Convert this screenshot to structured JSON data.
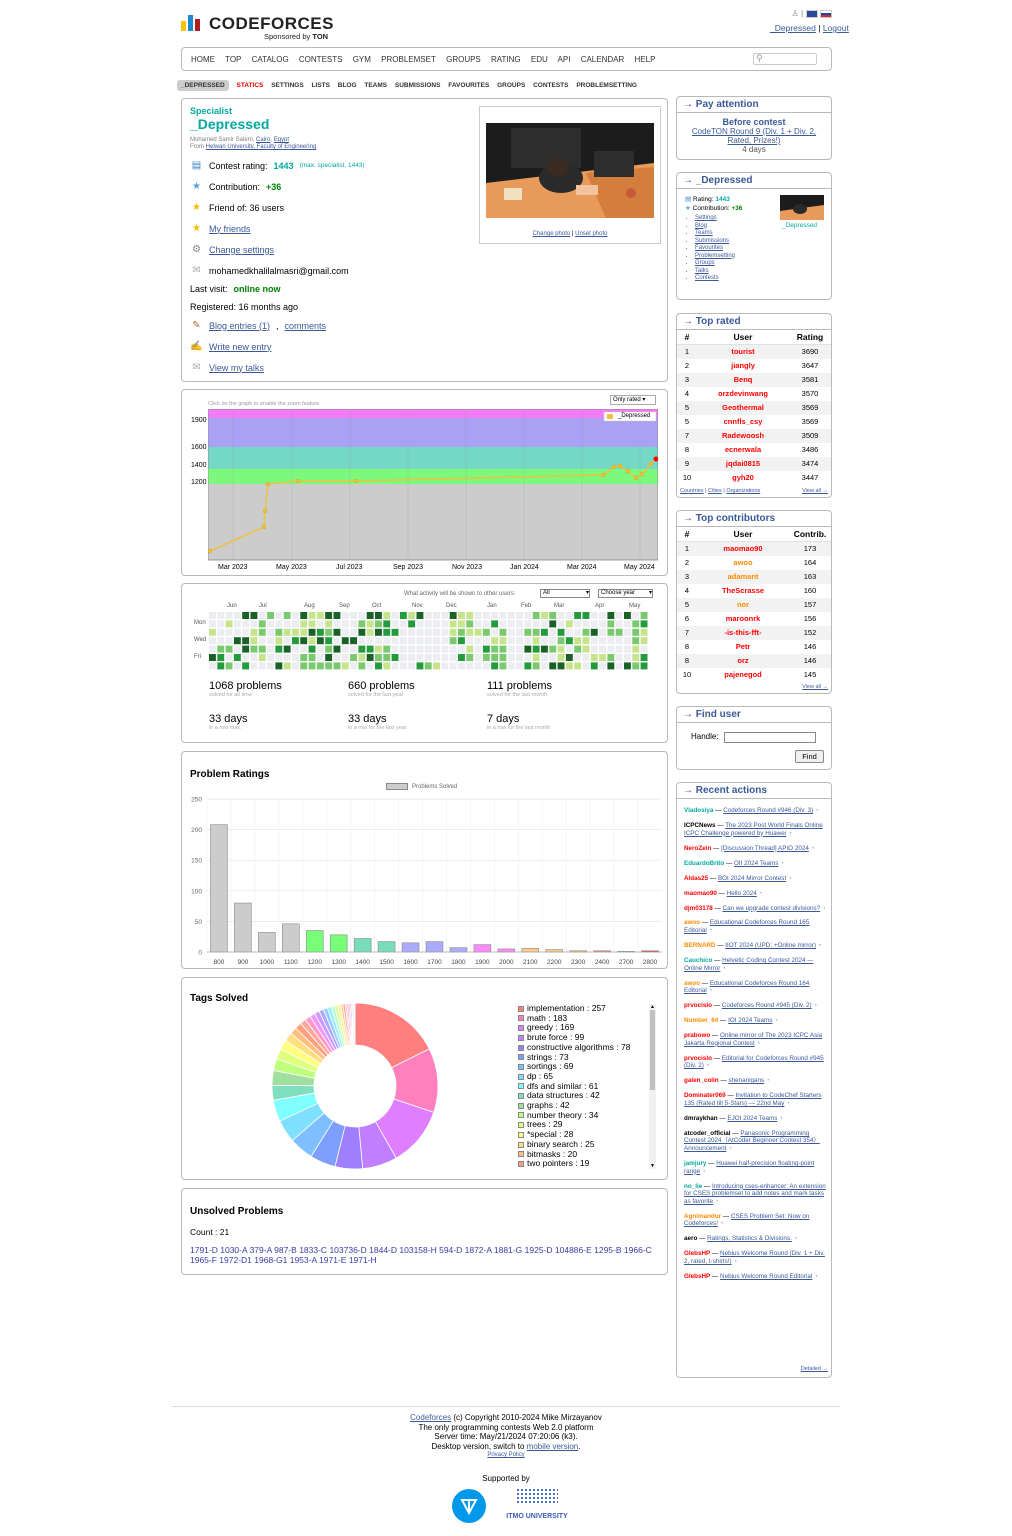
{
  "header": {
    "logo_text": "CODEFORCES",
    "sponsor_prefix": "Sponsored by",
    "sponsor": "TON",
    "user_link": "_Depressed",
    "logout": "Logout",
    "separator": "|"
  },
  "menu": [
    "HOME",
    "TOP",
    "CATALOG",
    "CONTESTS",
    "GYM",
    "PROBLEMSET",
    "GROUPS",
    "RATING",
    "EDU",
    "API",
    "CALENDAR",
    "HELP"
  ],
  "submenu": [
    "_DEPRESSED",
    "STATICS",
    "SETTINGS",
    "LISTS",
    "BLOG",
    "TEAMS",
    "SUBMISSIONS",
    "FAVOURITES",
    "GROUPS",
    "CONTESTS",
    "PROBLEMSETTING"
  ],
  "profile": {
    "rank": "Specialist",
    "handle": "_Depressed",
    "name_line": "Mohamed Samir Salem,",
    "city": "Cairo",
    "country": "Egypt",
    "from_prefix": "From",
    "org": "Helwan University, Faculty of Engineering",
    "rating_label": "Contest rating:",
    "rating": "1443",
    "rating_max": "(max. specialist, 1443)",
    "contribution_label": "Contribution:",
    "contribution": "+36",
    "friend_of": "Friend of: 36 users",
    "my_friends": "My friends",
    "change_settings": "Change settings",
    "email": "mohamedkhalilalmasri@gmail.com",
    "last_visit_label": "Last visit:",
    "last_visit": "online now",
    "registered": "Registered: 16 months ago",
    "blog_entries": "Blog entries (1)",
    "comments": "comments",
    "write_entry": "Write new entry",
    "view_talks": "View my talks",
    "change_photo": "Change photo",
    "unset_photo": "Unset photo"
  },
  "rating_graph": {
    "hint": "Click on the graph to enable the zoom feature.",
    "select": "Only rated",
    "legend": "_Depressed",
    "y_ticks": [
      "1900",
      "1600",
      "1400",
      "1200"
    ],
    "x_ticks": [
      "Mar 2023",
      "May 2023",
      "Jul 2023",
      "Sep 2023",
      "Nov 2023",
      "Jan 2024",
      "Mar 2024",
      "May 2024"
    ]
  },
  "activity": {
    "label": "What activity will be shown to other users:",
    "select_all": "All",
    "select_year": "Choose year",
    "months": [
      "Jun",
      "Jul",
      "Aug",
      "Sep",
      "Oct",
      "Nov",
      "Dec",
      "Jan",
      "Feb",
      "Mar",
      "Apr",
      "May"
    ],
    "days": [
      "Mon",
      "Wed",
      "Fri"
    ],
    "stats": [
      {
        "value": "1068 problems",
        "label": "solved for all time"
      },
      {
        "value": "660 problems",
        "label": "solved for the last year"
      },
      {
        "value": "111 problems",
        "label": "solved for the last month"
      },
      {
        "value": "33 days",
        "label": "in a row max."
      },
      {
        "value": "33 days",
        "label": "in a row for the last year"
      },
      {
        "value": "7 days",
        "label": "in a row for the last month"
      }
    ]
  },
  "chart_data": [
    {
      "type": "bar",
      "title": "Problem Ratings",
      "legend": "Problems Solved",
      "categories": [
        "800",
        "900",
        "1000",
        "1100",
        "1200",
        "1300",
        "1400",
        "1500",
        "1600",
        "1700",
        "1800",
        "1900",
        "2000",
        "2100",
        "2200",
        "2300",
        "2400",
        "2700",
        "2800"
      ],
      "values": [
        208,
        80,
        32,
        46,
        35,
        28,
        22,
        17,
        15,
        17,
        7,
        12,
        5,
        6,
        4,
        2,
        2,
        1,
        2
      ],
      "ylim": [
        0,
        250
      ],
      "y_ticks": [
        0,
        50,
        100,
        150,
        200,
        250
      ]
    },
    {
      "type": "pie",
      "title": "Tags Solved",
      "slices": [
        {
          "name": "implementation",
          "value": 257,
          "color": "#ff7f7f"
        },
        {
          "name": "math",
          "value": 183,
          "color": "#ff7fbf"
        },
        {
          "name": "greedy",
          "value": 169,
          "color": "#df7fff"
        },
        {
          "name": "brute force",
          "value": 99,
          "color": "#bf7fff"
        },
        {
          "name": "constructive algorithms",
          "value": 78,
          "color": "#9f7fff"
        },
        {
          "name": "strings",
          "value": 73,
          "color": "#7f9fff"
        },
        {
          "name": "sortings",
          "value": 69,
          "color": "#7fbfff"
        },
        {
          "name": "dp",
          "value": 65,
          "color": "#7fdfff"
        },
        {
          "name": "dfs and similar",
          "value": 61,
          "color": "#7fffff"
        },
        {
          "name": "data structures",
          "value": 42,
          "color": "#7fdfbf"
        },
        {
          "name": "graphs",
          "value": 42,
          "color": "#9fdf9f"
        },
        {
          "name": "number theory",
          "value": 34,
          "color": "#bfff7f"
        },
        {
          "name": "trees",
          "value": 29,
          "color": "#dfff7f"
        },
        {
          "name": "*special",
          "value": 28,
          "color": "#ffff7f"
        },
        {
          "name": "binary search",
          "value": 25,
          "color": "#ffdf7f"
        },
        {
          "name": "bitmasks",
          "value": 20,
          "color": "#ffbf7f"
        },
        {
          "name": "two pointers",
          "value": 19,
          "color": "#ff9f7f"
        }
      ]
    }
  ],
  "unsolved": {
    "title": "Unsolved Problems",
    "count": "Count : 21",
    "problems": [
      "1791-D",
      "1030-A",
      "379-A",
      "987-B",
      "1833-C",
      "103736-D",
      "1844-D",
      "103158-H",
      "594-D",
      "1872-A",
      "1881-G",
      "1925-D",
      "104886-E",
      "1295-B",
      "1966-C",
      "1965-F",
      "1972-D1",
      "1968-G1",
      "1953-A",
      "1971-E",
      "1971-H"
    ]
  },
  "sidebar": {
    "pay_attention": {
      "title": "→ Pay attention",
      "before": "Before contest",
      "contest": "CodeTON Round 9 (Div. 1 + Div. 2, Rated, Prizes!)",
      "days": "4 days"
    },
    "user_box": {
      "title": "→ _Depressed",
      "rating_label": "Rating:",
      "rating": "1443",
      "contribution_label": "Contribution:",
      "contribution": "+36",
      "handle": "_Depressed",
      "links": [
        "Settings",
        "Blog",
        "Teams",
        "Submissions",
        "Favourites",
        "Problemsetting",
        "Groups",
        "Talks",
        "Contests"
      ]
    },
    "top_rated": {
      "title": "→ Top rated",
      "headers": [
        "#",
        "User",
        "Rating"
      ],
      "rows": [
        [
          "1",
          "tourist",
          "3690",
          "red"
        ],
        [
          "2",
          "jiangly",
          "3647",
          "red"
        ],
        [
          "3",
          "Benq",
          "3581",
          "red"
        ],
        [
          "4",
          "orzdevinwang",
          "3570",
          "red"
        ],
        [
          "5",
          "Geothermal",
          "3569",
          "red"
        ],
        [
          "5",
          "cnnfls_csy",
          "3569",
          "red"
        ],
        [
          "7",
          "Radewoosh",
          "3509",
          "red"
        ],
        [
          "8",
          "ecnerwala",
          "3486",
          "red"
        ],
        [
          "9",
          "jqdai0815",
          "3474",
          "red"
        ],
        [
          "10",
          "gyh20",
          "3447",
          "red"
        ]
      ],
      "footer_links": [
        "Countries",
        "Cities",
        "Organizations"
      ],
      "view_all": "View all →"
    },
    "top_contrib": {
      "title": "→ Top contributors",
      "headers": [
        "#",
        "User",
        "Contrib."
      ],
      "rows": [
        [
          "1",
          "maomao90",
          "173",
          "red"
        ],
        [
          "2",
          "awoo",
          "164",
          "orange"
        ],
        [
          "3",
          "adamant",
          "163",
          "orange"
        ],
        [
          "4",
          "TheScrasse",
          "160",
          "red"
        ],
        [
          "5",
          "nor",
          "157",
          "orange"
        ],
        [
          "6",
          "maroonrk",
          "156",
          "red"
        ],
        [
          "7",
          "-is-this-fft-",
          "152",
          "red"
        ],
        [
          "8",
          "Petr",
          "146",
          "red"
        ],
        [
          "8",
          "orz",
          "146",
          "red"
        ],
        [
          "10",
          "pajenegod",
          "145",
          "red"
        ]
      ],
      "view_all": "View all →"
    },
    "find_user": {
      "title": "→ Find user",
      "label": "Handle:",
      "button": "Find"
    },
    "recent": {
      "title": "→ Recent actions",
      "items": [
        {
          "user": "Vladosiya",
          "cls": "cyan",
          "topic": "Codeforces Round #946 (Div. 3)"
        },
        {
          "user": "ICPCNews",
          "cls": "black",
          "topic": "The 2023 Post World Finals Online ICPC Challenge powered by Huawei"
        },
        {
          "user": "NeroZein",
          "cls": "red",
          "topic": "[Discussion Thread] APIO 2024"
        },
        {
          "user": "EduardoBrito",
          "cls": "cyan",
          "topic": "OII 2024 Teams"
        },
        {
          "user": "Aldas25",
          "cls": "red",
          "topic": "BOI 2024 Mirror Contest"
        },
        {
          "user": "maomao90",
          "cls": "red",
          "topic": "Hello 2024"
        },
        {
          "user": "djm03178",
          "cls": "red",
          "topic": "Can we upgrade contest divisions?"
        },
        {
          "user": "awoo",
          "cls": "orange",
          "topic": "Educational Codeforces Round 165 Editorial"
        },
        {
          "user": "BERNARD",
          "cls": "orange",
          "topic": "IIOT 2024 (UPD: +Online mirror)"
        },
        {
          "user": "Cauchico",
          "cls": "cyan",
          "topic": "Helvetic Coding Contest 2024 — Online Mirror"
        },
        {
          "user": "awoo",
          "cls": "orange",
          "topic": "Educational Codeforces Round 164 Editorial"
        },
        {
          "user": "prvocislo",
          "cls": "red",
          "topic": "Codeforces Round #945 (Div. 2)"
        },
        {
          "user": "Number_64",
          "cls": "orange",
          "topic": "IOI 2024 Teams"
        },
        {
          "user": "prabowo",
          "cls": "red",
          "topic": "Online mirror of The 2023 ICPC Asia Jakarta Regional Contest"
        },
        {
          "user": "prvocislo",
          "cls": "red",
          "topic": "Editorial for Codeforces Round #945 (Div. 2)"
        },
        {
          "user": "galen_colin",
          "cls": "red",
          "topic": "shenanigans"
        },
        {
          "user": "Dominater069",
          "cls": "red",
          "topic": "Invitation to CodeChef Starters 135 (Rated till 5-Stars) — 22nd May"
        },
        {
          "user": "dmraykhan",
          "cls": "black",
          "topic": "EJOI 2024 Teams"
        },
        {
          "user": "atcoder_official",
          "cls": "black",
          "topic": "Panasonic Programming Contest 2024（AtCoder Beginner Contest 354）Announcement"
        },
        {
          "user": "jamjury",
          "cls": "cyan",
          "topic": "Huawei half-precision floating-point range"
        },
        {
          "user": "no_lie",
          "cls": "cyan",
          "topic": "Introducing cses-enhancer: An extension for CSES problemset to add notes and mark tasks as favorite"
        },
        {
          "user": "Agnimandur",
          "cls": "orange",
          "topic": "CSES Problem Set: Now on Codeforces!"
        },
        {
          "user": "aero",
          "cls": "black",
          "topic": "Ratings, Statistics & Divisions."
        },
        {
          "user": "GlebsHP",
          "cls": "red",
          "topic": "Nebius Welcome Round (Div. 1 + Div. 2, rated, t-shirts!)"
        },
        {
          "user": "GlebsHP",
          "cls": "red",
          "topic": "Nebius Welcome Round Editorial"
        }
      ],
      "detailed": "Detailed →"
    }
  },
  "footer": {
    "site": "Codeforces",
    "copyright": "(c) Copyright 2010-2024 Mike Mirzayanov",
    "platform": "The only programming contests Web 2.0 platform",
    "server_time": "Server time: May/21/2024 07:20:06 (k3).",
    "desktop_prefix": "Desktop version, switch to",
    "mobile": "mobile version",
    "privacy": "Privacy Policy",
    "supported": "Supported by",
    "itmo": "ITMO UNIVERSITY"
  }
}
